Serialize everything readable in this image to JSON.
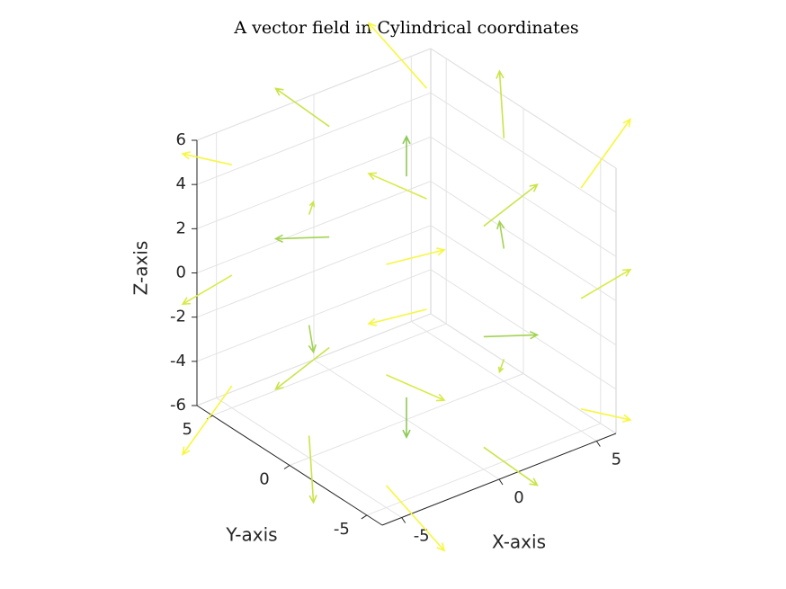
{
  "chart_data": {
    "type": "quiver3",
    "title": "A vector field in Cylindrical coordinates",
    "xlabel": "X-axis",
    "ylabel": "Y-axis",
    "zlabel": "Z-axis",
    "x": [
      -5,
      0,
      5,
      -5,
      0,
      5,
      -5,
      0,
      5,
      -5,
      0,
      5,
      -5,
      0,
      5,
      -5,
      0,
      5,
      -5,
      0,
      5,
      -5,
      0,
      5,
      -5,
      0,
      5
    ],
    "y": [
      -5,
      -5,
      -5,
      0,
      0,
      0,
      5,
      5,
      5,
      -5,
      -5,
      -5,
      0,
      0,
      0,
      5,
      5,
      5,
      -5,
      -5,
      -5,
      0,
      0,
      0,
      5,
      5,
      5
    ],
    "z": [
      -5,
      -5,
      -5,
      -5,
      -5,
      -5,
      -5,
      -5,
      -5,
      0,
      0,
      0,
      0,
      0,
      0,
      0,
      0,
      0,
      5,
      5,
      5,
      5,
      5,
      5,
      5,
      5,
      5
    ],
    "u": [
      0.5,
      1.5,
      2.5,
      -1,
      0,
      1,
      -2.5,
      -1.5,
      -0.5,
      0.5,
      1.5,
      2.5,
      -1,
      0,
      1,
      -2.5,
      -1.5,
      -0.5,
      0.5,
      1.5,
      2.5,
      -1,
      0,
      1,
      -2.5,
      -1.5,
      -0.5
    ],
    "v": [
      -2.5,
      -1,
      0.5,
      -1.5,
      0,
      1.5,
      -0.5,
      1,
      2.5,
      -2.5,
      -1,
      0.5,
      -1.5,
      0,
      1.5,
      -0.5,
      1,
      2.5,
      -2.5,
      -1,
      0.5,
      -1.5,
      0,
      1.5,
      -0.5,
      1,
      2.5
    ],
    "w": [
      -1.5,
      -1.5,
      -1.5,
      -1.5,
      -1.5,
      -1.5,
      -1.5,
      -1.5,
      -1.5,
      0,
      0,
      0,
      0,
      0,
      0,
      0,
      0,
      0,
      1.5,
      1.5,
      1.5,
      1.5,
      1.5,
      1.5,
      1.5,
      1.5,
      1.5
    ],
    "colormap": [
      "#1f9a6f",
      "#f7f740"
    ],
    "xlim": [
      -6,
      6
    ],
    "ylim": [
      -6,
      6
    ],
    "zlim": [
      -6,
      6
    ],
    "xticks": [
      -5,
      0,
      5
    ],
    "yticks": [
      -5,
      0,
      5
    ],
    "zticks": [
      -6,
      -4,
      -2,
      0,
      2,
      4,
      6
    ],
    "grid": true
  }
}
